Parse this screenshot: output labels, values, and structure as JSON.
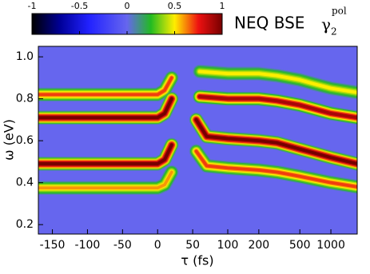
{
  "chart_data": {
    "type": "spectrogram",
    "title": "NEQ BSE",
    "symbol": "γ",
    "subscript": "2",
    "superscript": "pol",
    "xlabel": "τ (fs)",
    "ylabel": "ω (eV)",
    "xscale": {
      "type": "linear-log",
      "linthresh": 100
    },
    "xlim": [
      -170,
      1800
    ],
    "xticks": [
      -150,
      -100,
      -50,
      0,
      50,
      100,
      200,
      500,
      1000
    ],
    "ylim": [
      0.155,
      1.05
    ],
    "yticks": [
      0.2,
      0.4,
      0.6,
      0.8,
      {
        "value": 1,
        "label": "1.0"
      }
    ],
    "clim": [
      -1,
      1
    ],
    "cticks": [
      -1,
      -0.5,
      0,
      0.5,
      1
    ],
    "colormap": [
      {
        "value": -1,
        "color": "#000000"
      },
      {
        "value": -0.7,
        "color": "#000099"
      },
      {
        "value": -0.4,
        "color": "#2222ff"
      },
      {
        "value": 0,
        "color": "#6666ee"
      },
      {
        "value": 0.25,
        "color": "#22bb22"
      },
      {
        "value": 0.5,
        "color": "#ffee00"
      },
      {
        "value": 0.75,
        "color": "#ee1111"
      },
      {
        "value": 1,
        "color": "#770000"
      }
    ],
    "bands": [
      {
        "amplitude": 0.7,
        "x": [
          -170,
          0,
          10,
          20
        ],
        "y": [
          0.82,
          0.82,
          0.84,
          0.9
        ]
      },
      {
        "amplitude": 1,
        "x": [
          -170,
          0,
          10,
          20
        ],
        "y": [
          0.71,
          0.71,
          0.73,
          0.8
        ]
      },
      {
        "amplitude": 1,
        "x": [
          -170,
          0,
          10,
          20
        ],
        "y": [
          0.49,
          0.49,
          0.51,
          0.58
        ]
      },
      {
        "amplitude": 0.6,
        "x": [
          -170,
          0,
          10,
          20
        ],
        "y": [
          0.375,
          0.375,
          0.39,
          0.45
        ]
      },
      {
        "amplitude": 0.5,
        "x": [
          60,
          100,
          200,
          300,
          500,
          700,
          1000,
          1800
        ],
        "y": [
          0.93,
          0.92,
          0.92,
          0.91,
          0.89,
          0.87,
          0.85,
          0.83
        ]
      },
      {
        "amplitude": 0.9,
        "x": [
          60,
          100,
          200,
          300,
          500,
          1000,
          1800
        ],
        "y": [
          0.81,
          0.8,
          0.8,
          0.79,
          0.77,
          0.73,
          0.71
        ]
      },
      {
        "amplitude": 1,
        "x": [
          55,
          70,
          100,
          200,
          300,
          500,
          1000,
          1800
        ],
        "y": [
          0.7,
          0.62,
          0.61,
          0.6,
          0.59,
          0.56,
          0.52,
          0.49
        ]
      },
      {
        "amplitude": 0.7,
        "x": [
          55,
          70,
          100,
          200,
          300,
          500,
          1000,
          1800
        ],
        "y": [
          0.55,
          0.48,
          0.47,
          0.46,
          0.45,
          0.43,
          0.4,
          0.38
        ]
      }
    ]
  }
}
